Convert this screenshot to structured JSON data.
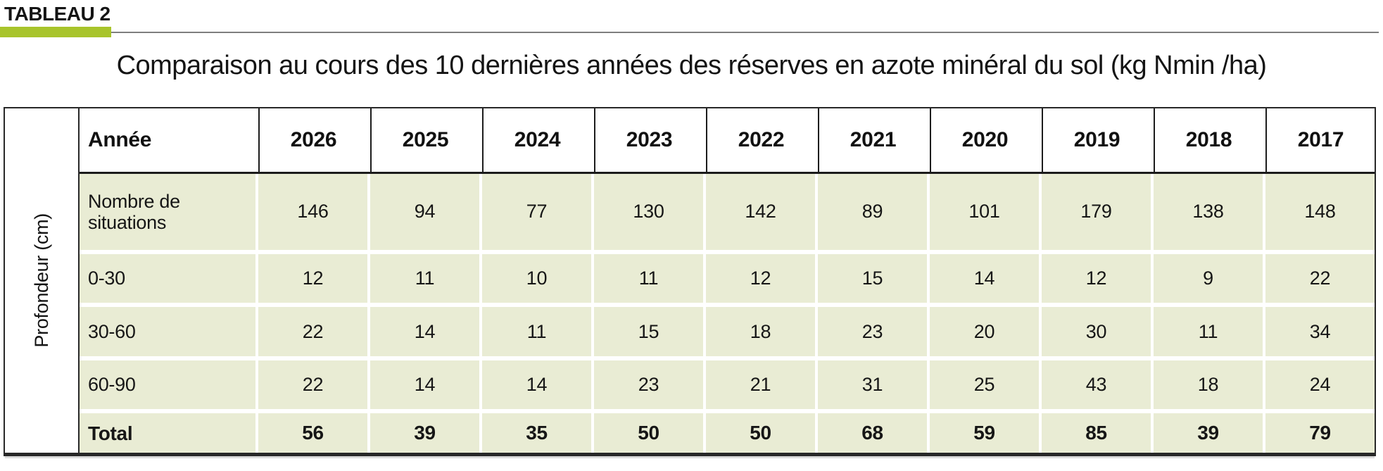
{
  "kicker": "TABLEAU 2",
  "title": "Comparaison au cours des 10 dernières années des réserves en azote minéral du sol (kg Nmin /ha)",
  "side_label": "Profondeur (cm)",
  "colors": {
    "accent_green": "#a8c42b",
    "row_background": "#e9ecd4",
    "rule_gray": "#7e7e7e",
    "border_black": "#282828"
  },
  "chart_data": {
    "type": "table",
    "title": "Comparaison au cours des 10 dernières années des réserves en azote minéral du sol (kg Nmin /ha)",
    "columns": [
      "Année",
      "2026",
      "2025",
      "2024",
      "2023",
      "2022",
      "2021",
      "2020",
      "2019",
      "2018",
      "2017"
    ],
    "row_group_label": "Profondeur (cm)",
    "rows": [
      {
        "label": "Nombre de situations",
        "values": [
          146,
          94,
          77,
          130,
          142,
          89,
          101,
          179,
          138,
          148
        ],
        "bold": false,
        "tall": true
      },
      {
        "label": "0-30",
        "values": [
          12,
          11,
          10,
          11,
          12,
          15,
          14,
          12,
          9,
          22
        ],
        "bold": false,
        "tall": false
      },
      {
        "label": "30-60",
        "values": [
          22,
          14,
          11,
          15,
          18,
          23,
          20,
          30,
          11,
          34
        ],
        "bold": false,
        "tall": false
      },
      {
        "label": "60-90",
        "values": [
          22,
          14,
          14,
          23,
          21,
          31,
          25,
          43,
          18,
          24
        ],
        "bold": false,
        "tall": false
      },
      {
        "label": "Total",
        "values": [
          56,
          39,
          35,
          50,
          50,
          68,
          59,
          85,
          39,
          79
        ],
        "bold": true,
        "tall": false
      }
    ]
  }
}
